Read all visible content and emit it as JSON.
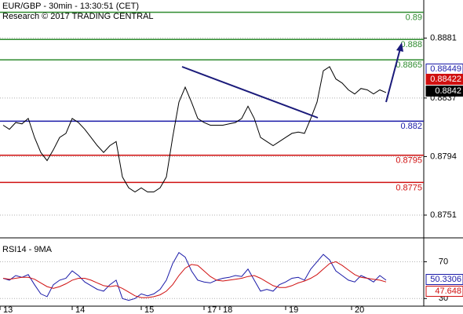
{
  "chart_data": [
    {
      "type": "line",
      "title": "EUR/GBP - 30min - 13:30:51 (CET)",
      "subtitle": "Research © 2017 TRADING CENTRAL",
      "x": [
        1,
        3,
        5,
        7,
        9,
        11,
        13,
        15,
        17,
        19,
        21,
        23,
        25,
        27,
        29,
        31,
        33,
        35,
        37,
        39,
        41,
        43,
        45,
        47,
        49,
        51,
        53,
        55,
        57,
        59,
        61,
        63,
        65,
        67,
        69,
        71,
        73,
        75,
        77,
        79,
        81,
        83,
        85,
        87,
        89,
        91,
        93,
        95,
        97,
        99,
        101,
        103,
        105,
        107,
        109,
        111,
        113,
        115,
        117,
        119,
        121,
        123
      ],
      "series": [
        {
          "color": "#000000",
          "values": [
            0.8817,
            0.8814,
            0.8819,
            0.8818,
            0.8822,
            0.8808,
            0.8797,
            0.8791,
            0.8799,
            0.8808,
            0.8811,
            0.8822,
            0.8819,
            0.8814,
            0.8808,
            0.8802,
            0.8797,
            0.8802,
            0.8805,
            0.8779,
            0.8771,
            0.8768,
            0.8771,
            0.8768,
            0.8768,
            0.8771,
            0.8779,
            0.8808,
            0.8834,
            0.8845,
            0.8834,
            0.8822,
            0.8819,
            0.8817,
            0.8817,
            0.8817,
            0.8818,
            0.8819,
            0.8822,
            0.8831,
            0.8822,
            0.8808,
            0.8805,
            0.8802,
            0.8805,
            0.8808,
            0.8811,
            0.8812,
            0.8811,
            0.8822,
            0.8834,
            0.8857,
            0.886,
            0.8851,
            0.8848,
            0.8843,
            0.884,
            0.8844,
            0.8843,
            0.884,
            0.8843,
            0.8841
          ]
        }
      ],
      "levels": [
        {
          "value": 0.89,
          "color": "#2e8b2e"
        },
        {
          "value": 0.888,
          "color": "#2e8b2e"
        },
        {
          "value": 0.8865,
          "color": "#2e8b2e"
        },
        {
          "value": 0.882,
          "color": "#1a1aa8"
        },
        {
          "value": 0.8795,
          "color": "#d01010"
        },
        {
          "value": 0.8775,
          "color": "#d01010"
        }
      ],
      "price_tags": [
        {
          "value": 0.88449,
          "color": "#1a1aa8"
        },
        {
          "value": 0.88422,
          "color": "#d01010"
        },
        {
          "value": 0.8842,
          "color": "#000000"
        }
      ],
      "xlim": [
        0,
        135
      ],
      "xticks": [
        {
          "value": 0,
          "label": "13"
        },
        {
          "value": 23,
          "label": "14"
        },
        {
          "value": 45,
          "label": "15"
        },
        {
          "value": 65,
          "label": "17"
        },
        {
          "value": 70,
          "label": "18"
        },
        {
          "value": 91,
          "label": "19"
        },
        {
          "value": 112,
          "label": "20"
        }
      ],
      "ylim": [
        0.8736,
        0.8909
      ],
      "yticks": [
        0.8751,
        0.8794,
        0.8837,
        0.8881
      ],
      "grid": true
    },
    {
      "type": "line",
      "title": "RSI14 - 9MA",
      "x": [
        1,
        3,
        5,
        7,
        9,
        11,
        13,
        15,
        17,
        19,
        21,
        23,
        25,
        27,
        29,
        31,
        33,
        35,
        37,
        39,
        41,
        43,
        45,
        47,
        49,
        51,
        53,
        55,
        57,
        59,
        61,
        63,
        65,
        67,
        69,
        71,
        73,
        75,
        77,
        79,
        81,
        83,
        85,
        87,
        89,
        91,
        93,
        95,
        97,
        99,
        101,
        103,
        105,
        107,
        109,
        111,
        113,
        115,
        117,
        119,
        121,
        123
      ],
      "series": [
        {
          "color": "#1a1aa8",
          "values": [
            52,
            50,
            55,
            53,
            56,
            45,
            35,
            32,
            45,
            50,
            52,
            60,
            55,
            48,
            44,
            40,
            38,
            45,
            50,
            30,
            28,
            30,
            35,
            33,
            35,
            40,
            50,
            68,
            80,
            75,
            60,
            50,
            48,
            47,
            50,
            52,
            53,
            55,
            54,
            62,
            50,
            38,
            40,
            38,
            45,
            48,
            52,
            53,
            50,
            62,
            70,
            78,
            72,
            60,
            55,
            50,
            48,
            55,
            52,
            48,
            55,
            50
          ]
        },
        {
          "color": "#d01010",
          "values": [
            52,
            51,
            52,
            53,
            53,
            51,
            47,
            43,
            41,
            43,
            46,
            50,
            52,
            52,
            50,
            47,
            44,
            43,
            44,
            41,
            37,
            33,
            31,
            31,
            32,
            34,
            38,
            45,
            55,
            63,
            67,
            66,
            60,
            54,
            50,
            49,
            50,
            51,
            52,
            54,
            55,
            52,
            48,
            44,
            42,
            42,
            44,
            47,
            49,
            52,
            56,
            62,
            68,
            70,
            66,
            61,
            56,
            53,
            52,
            51,
            50,
            48
          ]
        }
      ],
      "price_tags": [
        {
          "value": 50.3306,
          "color": "#1a1aa8"
        },
        {
          "value": 47.648,
          "color": "#d01010"
        }
      ],
      "xlim": [
        0,
        135
      ],
      "ylim": [
        20,
        90
      ],
      "yticks": [
        30,
        70
      ],
      "grid": true
    }
  ]
}
